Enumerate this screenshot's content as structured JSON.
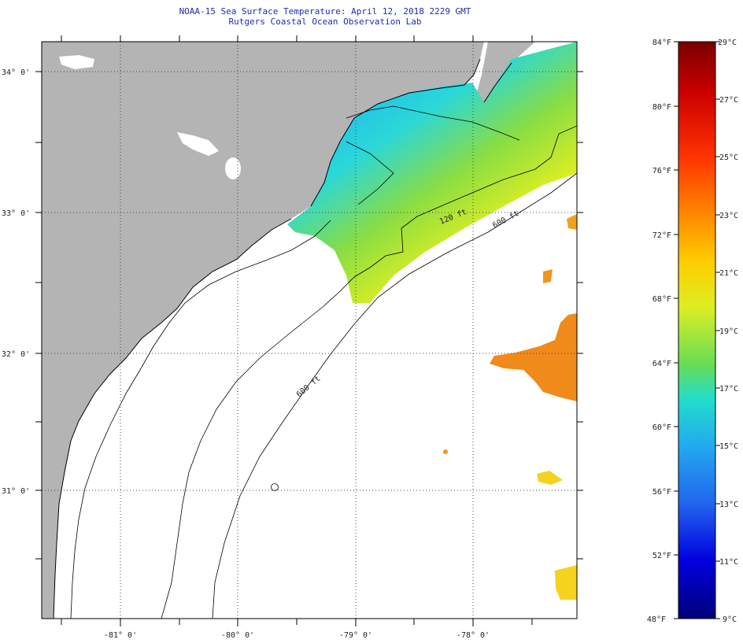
{
  "header": {
    "title": "NOAA-15 Sea Surface Temperature:  April 12, 2018 2229 GMT",
    "subtitle": "Rutgers Coastal Ocean Observation Lab"
  },
  "map": {
    "lat_labels": [
      "34° 0'",
      "33° 0'",
      "32° 0'",
      "31° 0'"
    ],
    "lon_labels": [
      "-81° 0'",
      "-80° 0'",
      "-79° 0'",
      "-78° 0'"
    ],
    "contour_labels": [
      "120 ft",
      "600 ft",
      "600 ft"
    ],
    "colors": {
      "land": "#b4b4b4",
      "cloud": "#ffffff",
      "coast": "#000000"
    }
  },
  "colorbar": {
    "fahrenheit_labels": [
      "84°F",
      "80°F",
      "76°F",
      "72°F",
      "68°F",
      "64°F",
      "60°F",
      "56°F",
      "52°F",
      "48°F"
    ],
    "celsius_labels": [
      "29°C",
      "27°C",
      "25°C",
      "23°C",
      "21°C",
      "19°C",
      "17°C",
      "15°C",
      "13°C",
      "11°C",
      "9°C"
    ],
    "gradient_stops": [
      "#7a0000",
      "#cc0000",
      "#ff3300",
      "#ff8800",
      "#ffcc00",
      "#ddee22",
      "#88dd44",
      "#22ddcc",
      "#22aaee",
      "#2266ee",
      "#0000dd",
      "#00007a"
    ]
  }
}
